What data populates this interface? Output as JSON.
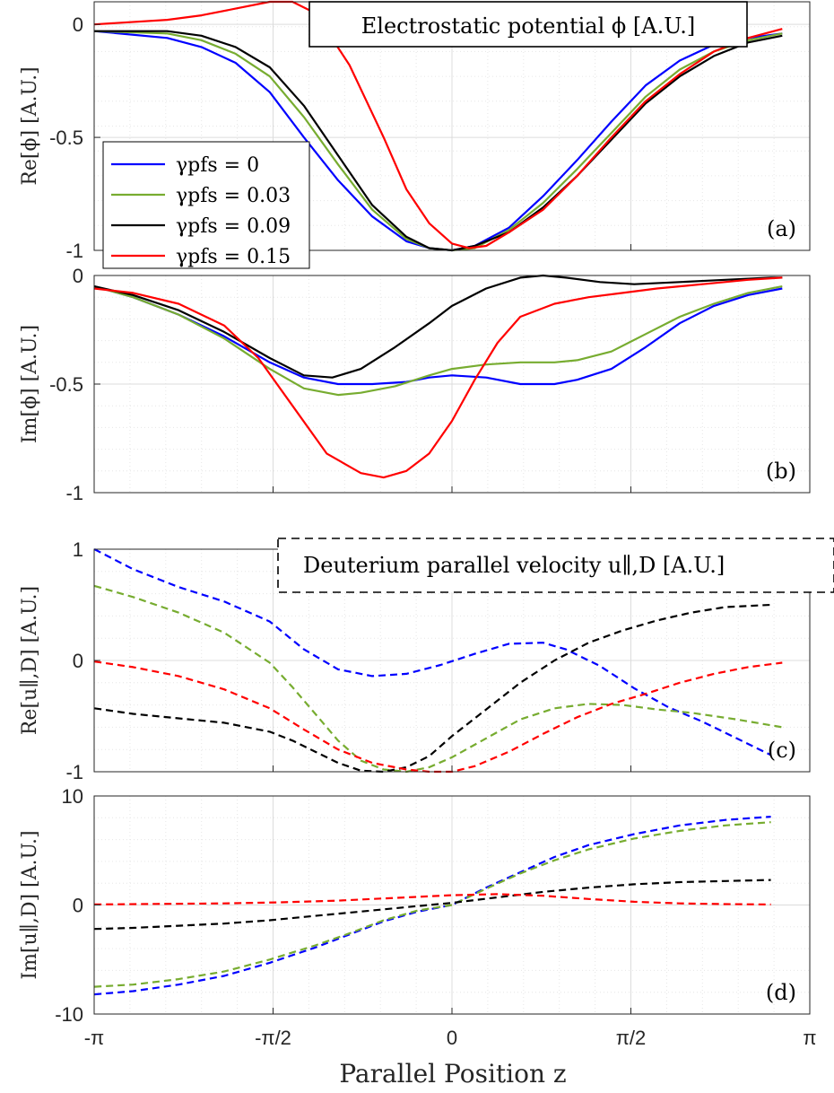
{
  "x_label": "Parallel Position z",
  "chart_data": [
    {
      "type": "line",
      "panel": "(a)",
      "ylabel": "Re[ϕ] [A.U.]",
      "annotation": "Electrostatic potential ϕ [A.U.]",
      "ylim": [
        -1,
        0.1
      ],
      "yticks": [
        0,
        -0.5,
        -1
      ],
      "ytick_labels": [
        "0",
        "-0.5",
        "-1"
      ],
      "xlim": [
        -3.1416,
        3.1416
      ],
      "xticks": [
        -3.1416,
        -1.5708,
        0,
        1.5708,
        3.1416
      ],
      "xtick_labels": [
        "-π",
        "-π/2",
        "0",
        "π/2",
        "π"
      ],
      "line_style": "solid",
      "legend": {
        "placement": "left",
        "entries": [
          "γpfs = 0",
          "γpfs = 0.03",
          "γpfs = 0.09",
          "γpfs = 0.15"
        ]
      },
      "series": [
        {
          "name": "γpfs = 0",
          "color": "#0000ff",
          "x": [
            -3.14,
            -2.5,
            -2.2,
            -1.9,
            -1.6,
            -1.3,
            -1.0,
            -0.7,
            -0.4,
            -0.2,
            0.0,
            0.2,
            0.5,
            0.8,
            1.1,
            1.4,
            1.7,
            2.0,
            2.3,
            2.6,
            2.9
          ],
          "y": [
            -0.03,
            -0.06,
            -0.1,
            -0.17,
            -0.3,
            -0.5,
            -0.69,
            -0.85,
            -0.96,
            -0.99,
            -1.0,
            -0.98,
            -0.9,
            -0.76,
            -0.6,
            -0.43,
            -0.27,
            -0.16,
            -0.09,
            -0.06,
            -0.04
          ]
        },
        {
          "name": "γpfs = 0.03",
          "color": "#77ac30",
          "x": [
            -3.14,
            -2.5,
            -2.2,
            -1.9,
            -1.6,
            -1.3,
            -1.0,
            -0.7,
            -0.4,
            -0.2,
            0.0,
            0.2,
            0.5,
            0.8,
            1.1,
            1.4,
            1.7,
            2.0,
            2.3,
            2.6,
            2.9
          ],
          "y": [
            -0.03,
            -0.04,
            -0.07,
            -0.13,
            -0.23,
            -0.41,
            -0.62,
            -0.82,
            -0.95,
            -0.99,
            -1.0,
            -0.99,
            -0.91,
            -0.79,
            -0.64,
            -0.48,
            -0.32,
            -0.2,
            -0.12,
            -0.07,
            -0.04
          ]
        },
        {
          "name": "γpfs = 0.09",
          "color": "#000000",
          "x": [
            -3.14,
            -2.5,
            -2.2,
            -1.9,
            -1.6,
            -1.3,
            -1.0,
            -0.7,
            -0.4,
            -0.2,
            0.0,
            0.2,
            0.5,
            0.8,
            1.1,
            1.4,
            1.7,
            2.0,
            2.3,
            2.6,
            2.9
          ],
          "y": [
            -0.03,
            -0.03,
            -0.05,
            -0.1,
            -0.19,
            -0.36,
            -0.58,
            -0.8,
            -0.94,
            -0.99,
            -1.0,
            -0.98,
            -0.92,
            -0.81,
            -0.67,
            -0.51,
            -0.35,
            -0.23,
            -0.14,
            -0.08,
            -0.05
          ]
        },
        {
          "name": "γpfs = 0.15",
          "color": "#ff0000",
          "x": [
            -3.14,
            -2.5,
            -2.2,
            -1.9,
            -1.6,
            -1.4,
            -1.2,
            -0.9,
            -0.6,
            -0.4,
            -0.2,
            0.0,
            0.15,
            0.3,
            0.5,
            0.8,
            1.1,
            1.4,
            1.7,
            2.0,
            2.3,
            2.6,
            2.9
          ],
          "y": [
            0.0,
            0.02,
            0.04,
            0.07,
            0.1,
            0.1,
            0.05,
            -0.18,
            -0.5,
            -0.73,
            -0.88,
            -0.97,
            -0.99,
            -0.98,
            -0.92,
            -0.82,
            -0.67,
            -0.5,
            -0.34,
            -0.22,
            -0.12,
            -0.06,
            -0.02
          ]
        }
      ]
    },
    {
      "type": "line",
      "panel": "(b)",
      "ylabel": "Im[ϕ] [A.U.]",
      "ylim": [
        -1,
        0
      ],
      "yticks": [
        0,
        -0.5,
        -1
      ],
      "ytick_labels": [
        "0",
        "-0.5",
        "-1"
      ],
      "xlim": [
        -3.1416,
        3.1416
      ],
      "xticks": [
        -3.1416,
        -1.5708,
        0,
        1.5708,
        3.1416
      ],
      "xtick_labels": [
        "-π",
        "-π/2",
        "0",
        "π/2",
        "π"
      ],
      "line_style": "solid",
      "series": [
        {
          "name": "γpfs = 0",
          "color": "#0000ff",
          "x": [
            -3.14,
            -2.8,
            -2.4,
            -2.0,
            -1.6,
            -1.3,
            -1.0,
            -0.7,
            -0.4,
            -0.2,
            0.0,
            0.3,
            0.6,
            0.9,
            1.1,
            1.4,
            1.7,
            2.0,
            2.3,
            2.6,
            2.9
          ],
          "y": [
            -0.05,
            -0.1,
            -0.18,
            -0.28,
            -0.4,
            -0.47,
            -0.5,
            -0.5,
            -0.49,
            -0.47,
            -0.46,
            -0.47,
            -0.5,
            -0.5,
            -0.48,
            -0.43,
            -0.33,
            -0.22,
            -0.14,
            -0.09,
            -0.06
          ]
        },
        {
          "name": "γpfs = 0.03",
          "color": "#77ac30",
          "x": [
            -3.14,
            -2.8,
            -2.4,
            -2.0,
            -1.6,
            -1.3,
            -1.0,
            -0.8,
            -0.5,
            -0.2,
            0.0,
            0.3,
            0.6,
            0.9,
            1.1,
            1.4,
            1.7,
            2.0,
            2.3,
            2.6,
            2.9
          ],
          "y": [
            -0.05,
            -0.1,
            -0.18,
            -0.29,
            -0.43,
            -0.52,
            -0.55,
            -0.54,
            -0.51,
            -0.46,
            -0.43,
            -0.41,
            -0.4,
            -0.4,
            -0.39,
            -0.35,
            -0.27,
            -0.19,
            -0.13,
            -0.08,
            -0.05
          ]
        },
        {
          "name": "γpfs = 0.09",
          "color": "#000000",
          "x": [
            -3.14,
            -2.8,
            -2.4,
            -2.0,
            -1.6,
            -1.3,
            -1.05,
            -0.8,
            -0.5,
            -0.2,
            0.0,
            0.3,
            0.6,
            0.8,
            1.0,
            1.3,
            1.6,
            2.0,
            2.4,
            2.8,
            2.9
          ],
          "y": [
            -0.05,
            -0.09,
            -0.16,
            -0.26,
            -0.38,
            -0.46,
            -0.47,
            -0.43,
            -0.33,
            -0.22,
            -0.14,
            -0.06,
            -0.01,
            0.0,
            -0.01,
            -0.03,
            -0.04,
            -0.03,
            -0.02,
            -0.01,
            -0.01
          ]
        },
        {
          "name": "γpfs = 0.15",
          "color": "#ff0000",
          "x": [
            -3.14,
            -2.8,
            -2.4,
            -2.0,
            -1.7,
            -1.4,
            -1.1,
            -0.8,
            -0.6,
            -0.4,
            -0.2,
            0.0,
            0.2,
            0.4,
            0.6,
            0.9,
            1.2,
            1.5,
            1.8,
            2.2,
            2.6,
            2.9
          ],
          "y": [
            -0.06,
            -0.08,
            -0.13,
            -0.23,
            -0.38,
            -0.6,
            -0.82,
            -0.91,
            -0.93,
            -0.9,
            -0.82,
            -0.67,
            -0.48,
            -0.31,
            -0.19,
            -0.13,
            -0.1,
            -0.08,
            -0.06,
            -0.04,
            -0.02,
            -0.01
          ]
        }
      ]
    },
    {
      "type": "line",
      "panel": "(c)",
      "ylabel": "Re[u∥,D] [A.U.]",
      "annotation": "Deuterium parallel velocity u∥,D [A.U.]",
      "ylim": [
        -1,
        1
      ],
      "yticks": [
        1,
        0,
        -1
      ],
      "ytick_labels": [
        "1",
        "0",
        "-1"
      ],
      "xlim": [
        -3.1416,
        3.1416
      ],
      "xticks": [
        -3.1416,
        -1.5708,
        0,
        1.5708,
        3.1416
      ],
      "xtick_labels": [
        "-π",
        "-π/2",
        "0",
        "π/2",
        "π"
      ],
      "line_style": "dashed",
      "series": [
        {
          "name": "γpfs = 0",
          "color": "#0000ff",
          "x": [
            -3.14,
            -2.8,
            -2.4,
            -2.0,
            -1.6,
            -1.3,
            -1.0,
            -0.7,
            -0.4,
            -0.1,
            0.2,
            0.5,
            0.8,
            1.0,
            1.3,
            1.6,
            1.9,
            2.2,
            2.5,
            2.8
          ],
          "y": [
            1.0,
            0.82,
            0.66,
            0.53,
            0.35,
            0.1,
            -0.08,
            -0.14,
            -0.12,
            -0.04,
            0.06,
            0.15,
            0.16,
            0.1,
            -0.05,
            -0.25,
            -0.42,
            -0.55,
            -0.7,
            -0.85
          ]
        },
        {
          "name": "γpfs = 0.03",
          "color": "#77ac30",
          "x": [
            -3.14,
            -2.8,
            -2.4,
            -2.0,
            -1.6,
            -1.4,
            -1.2,
            -1.0,
            -0.8,
            -0.6,
            -0.4,
            -0.2,
            0.0,
            0.3,
            0.6,
            0.9,
            1.2,
            1.5,
            1.8,
            2.1,
            2.5,
            2.9
          ],
          "y": [
            0.67,
            0.57,
            0.43,
            0.25,
            -0.02,
            -0.24,
            -0.48,
            -0.72,
            -0.9,
            -0.98,
            -1.0,
            -0.96,
            -0.87,
            -0.7,
            -0.53,
            -0.43,
            -0.39,
            -0.4,
            -0.44,
            -0.47,
            -0.53,
            -0.6
          ]
        },
        {
          "name": "γpfs = 0.09",
          "color": "#000000",
          "x": [
            -3.14,
            -2.8,
            -2.4,
            -2.0,
            -1.6,
            -1.4,
            -1.2,
            -1.0,
            -0.8,
            -0.6,
            -0.4,
            -0.2,
            0.0,
            0.3,
            0.6,
            0.9,
            1.2,
            1.5,
            1.8,
            2.1,
            2.4,
            2.8
          ],
          "y": [
            -0.43,
            -0.48,
            -0.52,
            -0.56,
            -0.64,
            -0.72,
            -0.82,
            -0.92,
            -0.99,
            -1.0,
            -0.96,
            -0.86,
            -0.68,
            -0.44,
            -0.2,
            0.0,
            0.16,
            0.27,
            0.36,
            0.43,
            0.48,
            0.5
          ]
        },
        {
          "name": "γpfs = 0.15",
          "color": "#ff0000",
          "x": [
            -3.14,
            -2.8,
            -2.4,
            -2.0,
            -1.6,
            -1.3,
            -1.0,
            -0.7,
            -0.4,
            -0.2,
            0.0,
            0.2,
            0.5,
            0.8,
            1.1,
            1.4,
            1.7,
            2.0,
            2.3,
            2.6,
            2.9
          ],
          "y": [
            -0.01,
            -0.06,
            -0.14,
            -0.26,
            -0.43,
            -0.62,
            -0.8,
            -0.92,
            -0.98,
            -1.0,
            -1.0,
            -0.95,
            -0.82,
            -0.66,
            -0.51,
            -0.39,
            -0.3,
            -0.2,
            -0.12,
            -0.06,
            -0.02
          ]
        }
      ]
    },
    {
      "type": "line",
      "panel": "(d)",
      "ylabel": "Im[u∥,D] [A.U.]",
      "ylim": [
        -10,
        10
      ],
      "yticks": [
        10,
        0,
        -10
      ],
      "ytick_labels": [
        "10",
        "0",
        "-10"
      ],
      "xlim": [
        -3.1416,
        3.1416
      ],
      "xticks": [
        -3.1416,
        -1.5708,
        0,
        1.5708,
        3.1416
      ],
      "xtick_labels": [
        "-π",
        "-π/2",
        "0",
        "π/2",
        "π"
      ],
      "line_style": "dashed",
      "series": [
        {
          "name": "γpfs = 0",
          "color": "#0000ff",
          "x": [
            -3.14,
            -2.8,
            -2.4,
            -2.0,
            -1.6,
            -1.2,
            -0.9,
            -0.6,
            -0.3,
            0.0,
            0.3,
            0.6,
            0.9,
            1.2,
            1.6,
            2.0,
            2.4,
            2.8
          ],
          "y": [
            -8.2,
            -7.9,
            -7.3,
            -6.5,
            -5.3,
            -3.9,
            -2.7,
            -1.5,
            -0.6,
            0.0,
            1.6,
            3.0,
            4.4,
            5.5,
            6.5,
            7.3,
            7.8,
            8.1
          ]
        },
        {
          "name": "γpfs = 0.03",
          "color": "#77ac30",
          "x": [
            -3.14,
            -2.8,
            -2.4,
            -2.0,
            -1.6,
            -1.2,
            -0.9,
            -0.6,
            -0.3,
            0.0,
            0.3,
            0.6,
            0.9,
            1.2,
            1.6,
            2.0,
            2.4,
            2.8
          ],
          "y": [
            -7.5,
            -7.3,
            -6.8,
            -6.1,
            -5.0,
            -3.7,
            -2.6,
            -1.4,
            -0.5,
            0.0,
            1.5,
            2.9,
            4.1,
            5.1,
            6.1,
            6.8,
            7.3,
            7.6
          ]
        },
        {
          "name": "γpfs = 0.09",
          "color": "#000000",
          "x": [
            -3.14,
            -2.8,
            -2.4,
            -2.0,
            -1.6,
            -1.2,
            -0.8,
            -0.4,
            0.0,
            0.4,
            0.8,
            1.2,
            1.6,
            2.0,
            2.4,
            2.8
          ],
          "y": [
            -2.2,
            -2.1,
            -1.9,
            -1.7,
            -1.4,
            -1.0,
            -0.6,
            -0.2,
            0.2,
            0.7,
            1.2,
            1.6,
            1.9,
            2.1,
            2.2,
            2.3
          ]
        },
        {
          "name": "γpfs = 0.15",
          "color": "#ff0000",
          "x": [
            -3.14,
            -2.6,
            -2.0,
            -1.5,
            -1.0,
            -0.5,
            0.0,
            0.4,
            0.8,
            1.2,
            1.6,
            2.0,
            2.4,
            2.8
          ],
          "y": [
            0.05,
            0.1,
            0.15,
            0.25,
            0.4,
            0.65,
            0.9,
            1.0,
            0.85,
            0.55,
            0.3,
            0.15,
            0.08,
            0.05
          ]
        }
      ]
    }
  ]
}
